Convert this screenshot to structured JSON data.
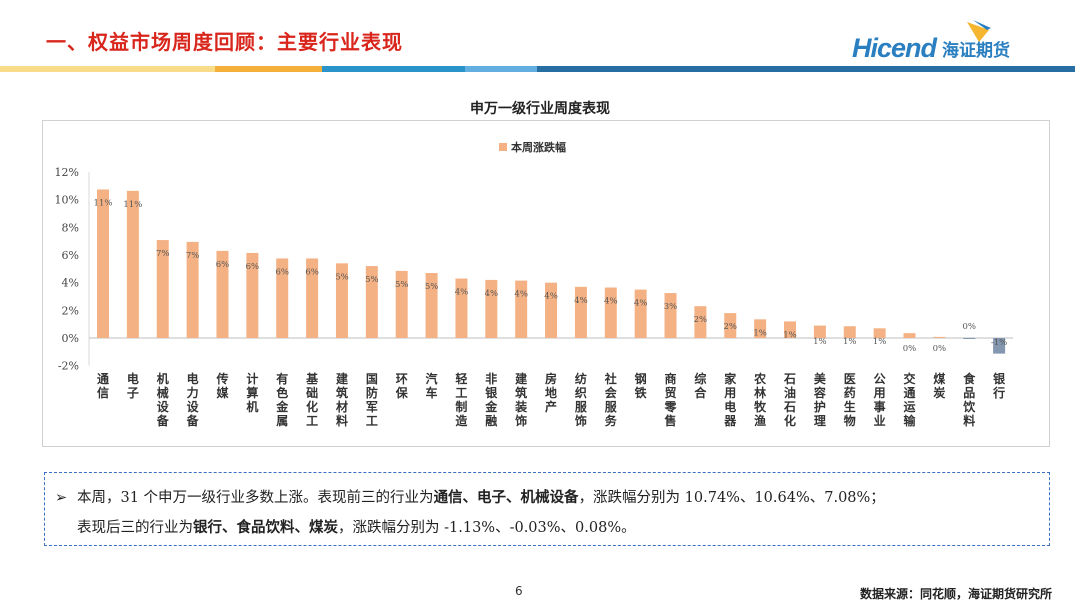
{
  "header": {
    "title": "一、权益市场周度回顾：主要行业表现",
    "logo_en": "Hicend",
    "logo_cn": "海证期货"
  },
  "colors": {
    "positive": "#f4b183",
    "negative": "#8497b0",
    "stripe": [
      "#f9dc8a",
      "#f4b03a",
      "#2a93c9",
      "#62afe0",
      "#276fa3"
    ]
  },
  "chart_data": {
    "type": "bar",
    "title": "申万一级行业周度表现",
    "legend": "本周涨跌幅",
    "legend_position": "top-center",
    "ylim": [
      -2,
      12
    ],
    "yticks": [
      "12%",
      "10%",
      "8%",
      "6%",
      "4%",
      "2%",
      "0%",
      "-2%"
    ],
    "ytick_values": [
      12,
      10,
      8,
      6,
      4,
      2,
      0,
      -2
    ],
    "categories": [
      "通信",
      "电子",
      "机械设备",
      "电力设备",
      "传媒",
      "计算机",
      "有色金属",
      "基础化工",
      "建筑材料",
      "国防军工",
      "环保",
      "汽车",
      "轻工制造",
      "非银金融",
      "建筑装饰",
      "房地产",
      "纺织服饰",
      "社会服务",
      "钢铁",
      "商贸零售",
      "综合",
      "家用电器",
      "农林牧渔",
      "石油石化",
      "美容护理",
      "医药生物",
      "公用事业",
      "交通运输",
      "煤炭",
      "食品饮料",
      "银行"
    ],
    "values": [
      10.74,
      10.64,
      7.08,
      6.95,
      6.3,
      6.15,
      5.75,
      5.75,
      5.4,
      5.2,
      4.85,
      4.7,
      4.3,
      4.2,
      4.15,
      4.0,
      3.7,
      3.65,
      3.5,
      3.25,
      2.3,
      1.8,
      1.35,
      1.2,
      0.9,
      0.85,
      0.7,
      0.35,
      0.08,
      -0.03,
      -1.13
    ],
    "labels": [
      "11%",
      "11%",
      "7%",
      "7%",
      "6%",
      "6%",
      "6%",
      "6%",
      "5%",
      "5%",
      "5%",
      "5%",
      "4%",
      "4%",
      "4%",
      "4%",
      "4%",
      "4%",
      "4%",
      "3%",
      "2%",
      "2%",
      "1%",
      "1%",
      "1%",
      "1%",
      "1%",
      "0%",
      "0%",
      "0%",
      "-1%"
    ]
  },
  "summary": {
    "line1_a": "本周，31 个申万一级行业多数上涨。表现前三的行业为",
    "line1_b": "通信、电子、机械设备",
    "line1_c": "，涨跌幅分别为 10.74%、10.64%、7.08%；",
    "line2_a": "表现后三的行业为",
    "line2_b": "银行、食品饮料、煤炭",
    "line2_c": "，涨跌幅分别为 -1.13%、-0.03%、0.08%。"
  },
  "footer": {
    "page": "6",
    "source": "数据来源：同花顺，海证期货研究所"
  }
}
